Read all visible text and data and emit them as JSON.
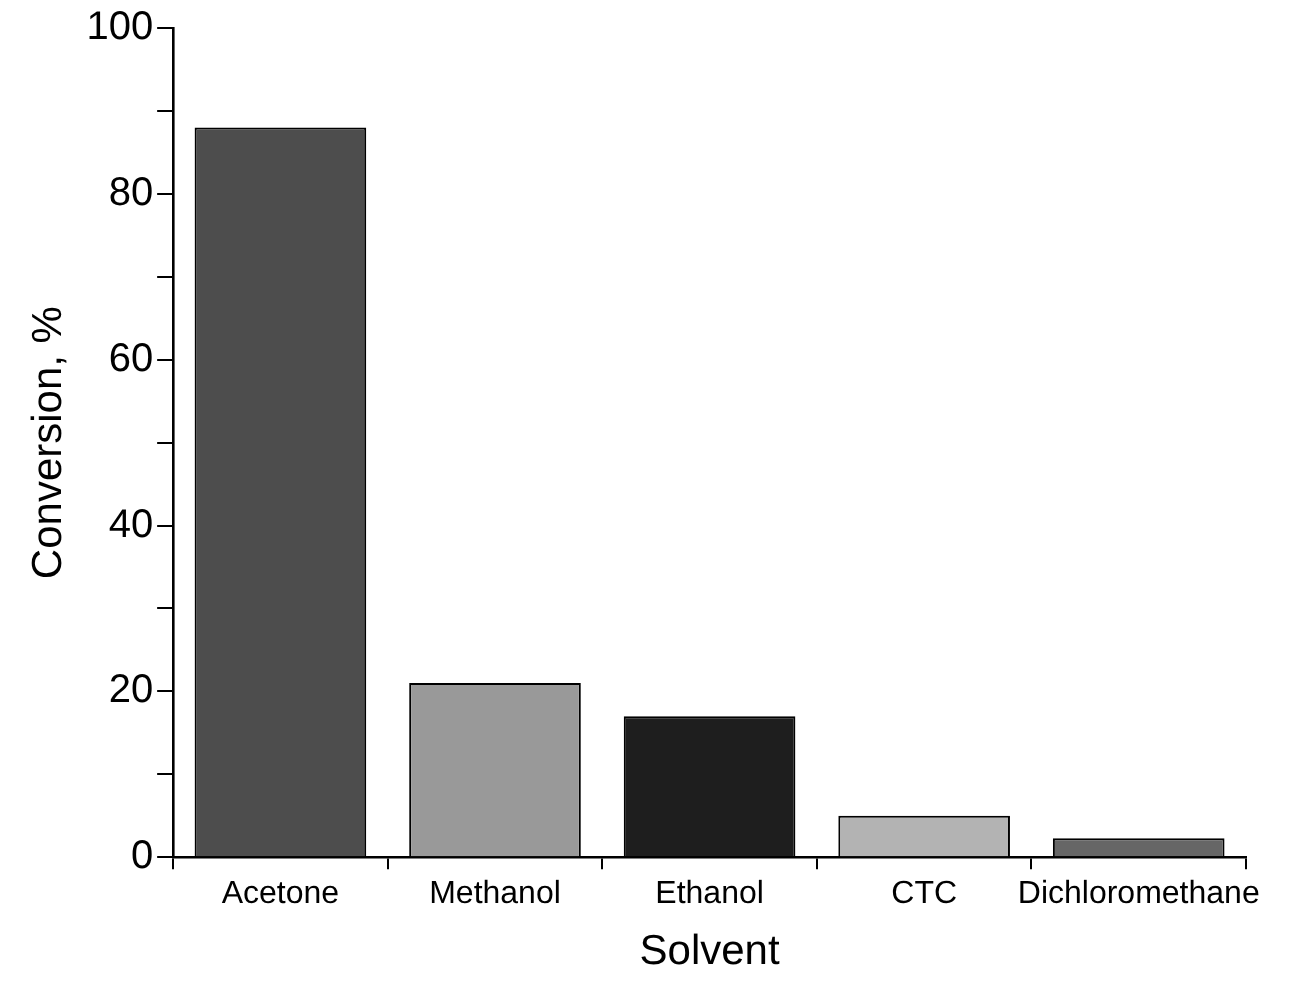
{
  "chart_data": {
    "type": "bar",
    "xlabel": "Solvent",
    "ylabel": "Conversion, %",
    "categories": [
      "Acetone",
      "Methanol",
      "Ethanol",
      "CTC",
      "Dichloromethane"
    ],
    "values": [
      88,
      21,
      17,
      5,
      2.3
    ],
    "colors": [
      "#4d4d4d",
      "#999999",
      "#1e1e1e",
      "#b3b3b3",
      "#666666"
    ],
    "ylim": [
      0,
      100
    ],
    "yticks": [
      0,
      {
        "value": 10,
        "label": null
      },
      20,
      {
        "value": 30,
        "label": null
      },
      40,
      {
        "value": 50,
        "label": null
      },
      60,
      {
        "value": 70,
        "label": null
      },
      80,
      {
        "value": 90,
        "label": null
      },
      100
    ],
    "grid": false,
    "legend": false
  }
}
